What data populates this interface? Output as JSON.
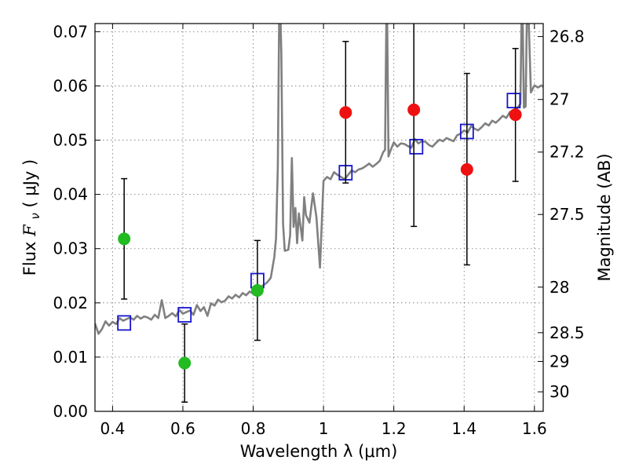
{
  "chart_data": {
    "type": "scatter",
    "title": "",
    "xlabel": "Wavelength  λ (μm)",
    "ylabel": "Flux  F_ν  ( μJy )",
    "ylabel_parts": {
      "prefix": "Flux ",
      "var": "F",
      "sub": "ν",
      "suffix": "  ( μJy )"
    },
    "y2label": "Magnitude (AB)",
    "xlim": [
      0.35,
      1.625
    ],
    "ylim": [
      0.0,
      0.0715
    ],
    "x_ticks": [
      0.4,
      0.6,
      0.8,
      1.0,
      1.2,
      1.4,
      1.6
    ],
    "x_tick_labels": [
      "0.4",
      "0.6",
      "0.8",
      "1",
      "1.2",
      "1.4",
      "1.6"
    ],
    "y_ticks": [
      0.0,
      0.01,
      0.02,
      0.03,
      0.04,
      0.05,
      0.06,
      0.07
    ],
    "y_tick_labels": [
      "0.00",
      "0.01",
      "0.02",
      "0.03",
      "0.04",
      "0.05",
      "0.06",
      "0.07"
    ],
    "y2_ticks": [
      {
        "label": "26.8",
        "flux": 0.0691
      },
      {
        "label": "27",
        "flux": 0.0575
      },
      {
        "label": "27.2",
        "flux": 0.0478
      },
      {
        "label": "27.5",
        "flux": 0.0363
      },
      {
        "label": "28",
        "flux": 0.0229
      },
      {
        "label": "28.5",
        "flux": 0.0145
      },
      {
        "label": "29",
        "flux": 0.0092
      },
      {
        "label": "30",
        "flux": 0.0036
      }
    ],
    "grid": true,
    "colors": {
      "model": "#808080",
      "green": "#22bb22",
      "red": "#ee1111",
      "model_box": "#1515cc",
      "errorbar": "#000000"
    },
    "series": [
      {
        "kind": "line",
        "x": [
          0.35,
          0.36,
          0.37,
          0.38,
          0.39,
          0.4,
          0.41,
          0.42,
          0.43,
          0.44,
          0.45,
          0.46,
          0.47,
          0.48,
          0.49,
          0.5,
          0.51,
          0.52,
          0.53,
          0.54,
          0.55,
          0.56,
          0.57,
          0.58,
          0.59,
          0.6,
          0.61,
          0.62,
          0.63,
          0.64,
          0.65,
          0.66,
          0.67,
          0.68,
          0.69,
          0.7,
          0.71,
          0.72,
          0.73,
          0.74,
          0.75,
          0.76,
          0.77,
          0.78,
          0.79,
          0.8,
          0.81,
          0.82,
          0.83,
          0.84,
          0.85,
          0.86,
          0.865,
          0.87,
          0.875,
          0.88,
          0.885,
          0.89,
          0.9,
          0.905,
          0.91,
          0.915,
          0.92,
          0.925,
          0.93,
          0.94,
          0.945,
          0.95,
          0.96,
          0.97,
          0.98,
          0.99,
          1.0,
          1.01,
          1.02,
          1.03,
          1.04,
          1.05,
          1.06,
          1.07,
          1.08,
          1.09,
          1.1,
          1.11,
          1.12,
          1.13,
          1.14,
          1.15,
          1.16,
          1.17,
          1.175,
          1.18,
          1.185,
          1.19,
          1.2,
          1.21,
          1.22,
          1.23,
          1.24,
          1.25,
          1.26,
          1.27,
          1.28,
          1.29,
          1.3,
          1.31,
          1.32,
          1.33,
          1.34,
          1.35,
          1.36,
          1.37,
          1.38,
          1.39,
          1.4,
          1.41,
          1.42,
          1.43,
          1.44,
          1.45,
          1.46,
          1.47,
          1.48,
          1.49,
          1.5,
          1.51,
          1.52,
          1.53,
          1.54,
          1.55,
          1.56,
          1.565,
          1.57,
          1.575,
          1.58,
          1.59,
          1.6,
          1.61,
          1.62,
          1.625
        ],
        "y": [
          0.0162,
          0.0143,
          0.0152,
          0.0166,
          0.0158,
          0.0165,
          0.0161,
          0.0172,
          0.0167,
          0.017,
          0.0173,
          0.0169,
          0.0176,
          0.0171,
          0.0175,
          0.0173,
          0.0169,
          0.0178,
          0.0172,
          0.0205,
          0.0172,
          0.0176,
          0.0181,
          0.0175,
          0.0187,
          0.018,
          0.0183,
          0.0186,
          0.0178,
          0.0196,
          0.0185,
          0.0192,
          0.0176,
          0.0199,
          0.0195,
          0.0206,
          0.0201,
          0.0204,
          0.0212,
          0.0208,
          0.0215,
          0.021,
          0.0218,
          0.0214,
          0.0221,
          0.0217,
          0.0224,
          0.0229,
          0.0233,
          0.0238,
          0.0246,
          0.0284,
          0.0318,
          0.045,
          0.08,
          0.066,
          0.0345,
          0.0296,
          0.0298,
          0.0325,
          0.0467,
          0.034,
          0.0375,
          0.031,
          0.0365,
          0.0315,
          0.0395,
          0.0362,
          0.0348,
          0.0402,
          0.0358,
          0.0265,
          0.0425,
          0.0432,
          0.0428,
          0.0441,
          0.0436,
          0.0432,
          0.0428,
          0.0436,
          0.0444,
          0.0441,
          0.0446,
          0.0448,
          0.0452,
          0.0457,
          0.0451,
          0.0456,
          0.0462,
          0.0478,
          0.0482,
          0.08,
          0.047,
          0.048,
          0.0496,
          0.0488,
          0.0494,
          0.0493,
          0.0489,
          0.0486,
          0.0502,
          0.0494,
          0.0498,
          0.0497,
          0.0491,
          0.0488,
          0.0495,
          0.0501,
          0.0498,
          0.0504,
          0.0501,
          0.0498,
          0.0509,
          0.0512,
          0.0518,
          0.0514,
          0.0526,
          0.0521,
          0.0518,
          0.0524,
          0.0531,
          0.0527,
          0.0536,
          0.0532,
          0.0538,
          0.0545,
          0.0541,
          0.0552,
          0.0549,
          0.0558,
          0.0567,
          0.08,
          0.056,
          0.0562,
          0.08,
          0.0588,
          0.0601,
          0.0597,
          0.0601,
          0.0598
        ]
      },
      {
        "kind": "model_photometry",
        "x": [
          0.433,
          0.605,
          0.812,
          1.063,
          1.264,
          1.408,
          1.541
        ],
        "y": [
          0.0163,
          0.0178,
          0.0241,
          0.044,
          0.0488,
          0.0516,
          0.0573
        ]
      },
      {
        "kind": "observed",
        "color": "green",
        "x": [
          0.433,
          0.605,
          0.812
        ],
        "y": [
          0.0318,
          0.0089,
          0.0223
        ],
        "yerr": [
          0.0111,
          0.0072,
          0.0092
        ]
      },
      {
        "kind": "observed",
        "color": "red",
        "x": [
          1.063,
          1.257,
          1.408,
          1.546
        ],
        "y": [
          0.0551,
          0.0556,
          0.0446,
          0.0547
        ],
        "yerr": [
          0.013,
          0.0215,
          0.0176,
          0.0123
        ],
        "yerr_upper": [
          0.0131,
          0.0215,
          0.0177,
          0.0122
        ]
      }
    ]
  }
}
